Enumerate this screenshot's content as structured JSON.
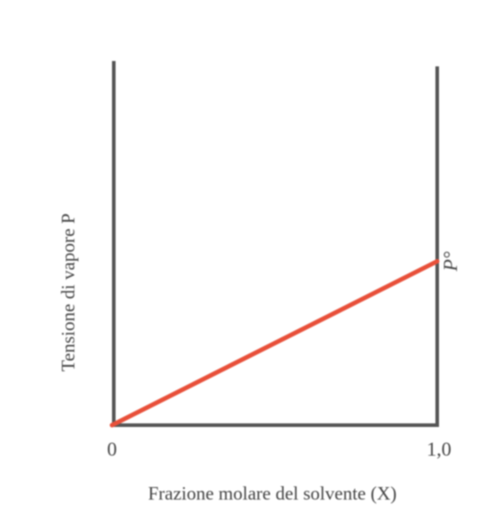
{
  "chart_data": {
    "type": "line",
    "title": "",
    "xlabel": "Frazione molare del solvente (X)",
    "ylabel": "Tensione di vapore P",
    "xlim": [
      0,
      1
    ],
    "ylim": [
      0,
      1
    ],
    "x_ticks": [
      "0",
      "1,0"
    ],
    "series": [
      {
        "name": "",
        "x": [
          0,
          1
        ],
        "y": [
          0,
          0.45
        ],
        "color": "#e8503a"
      }
    ],
    "annotations": [
      {
        "text": "P°",
        "x": 1,
        "y": 0.45
      }
    ],
    "grid": false,
    "legend": "none"
  }
}
